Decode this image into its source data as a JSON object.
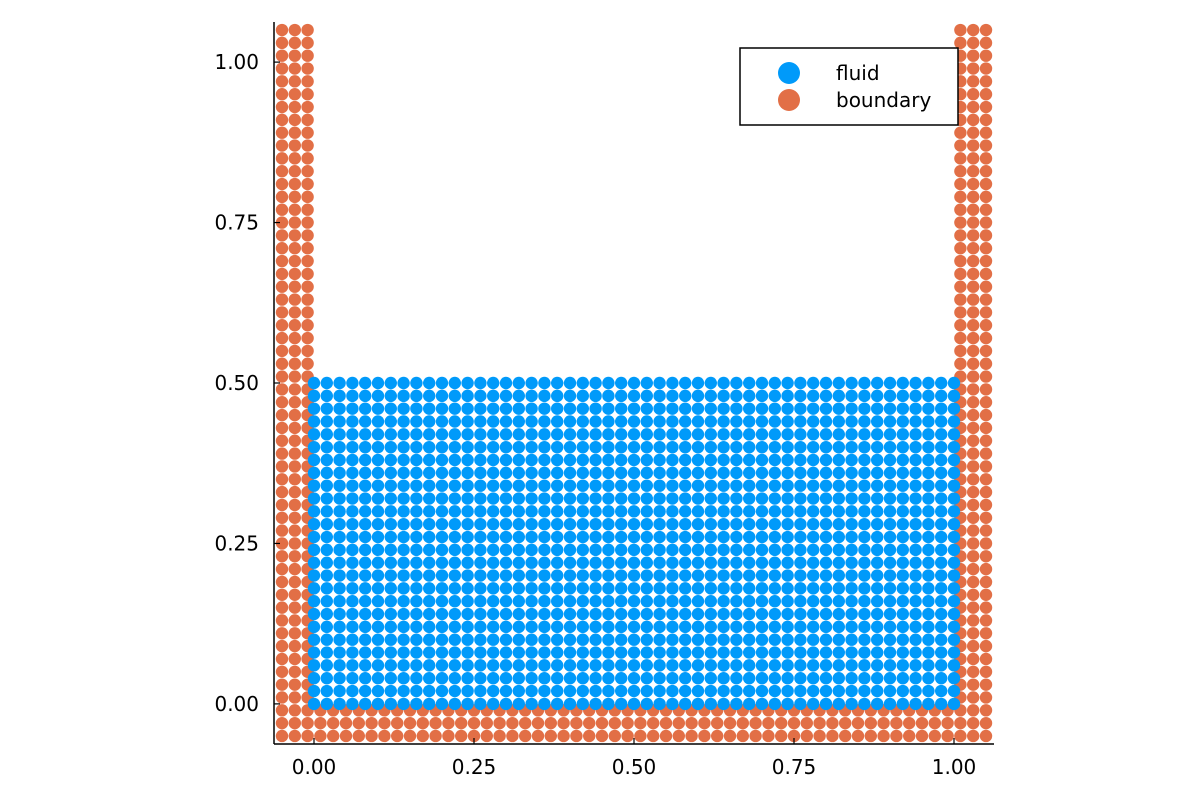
{
  "chart_data": {
    "type": "scatter",
    "title": "",
    "xlabel": "",
    "ylabel": "",
    "xlim": [
      -0.0625,
      1.0625
    ],
    "ylim": [
      -0.0625,
      1.0625
    ],
    "aspect": "equal",
    "grid": false,
    "legend_position": "top-right",
    "x_ticks": [
      {
        "value": 0.0,
        "label": "0.00"
      },
      {
        "value": 0.25,
        "label": "0.25"
      },
      {
        "value": 0.5,
        "label": "0.50"
      },
      {
        "value": 0.75,
        "label": "0.75"
      },
      {
        "value": 1.0,
        "label": "1.00"
      }
    ],
    "y_ticks": [
      {
        "value": 0.0,
        "label": "0.00"
      },
      {
        "value": 0.25,
        "label": "0.25"
      },
      {
        "value": 0.5,
        "label": "0.50"
      },
      {
        "value": 0.75,
        "label": "0.75"
      },
      {
        "value": 1.0,
        "label": "1.00"
      }
    ],
    "series": [
      {
        "name": "fluid",
        "color": "#009AFA",
        "grid": {
          "x_start": 0.0,
          "x_end": 1.0,
          "y_start": 0.0,
          "y_end": 0.5,
          "spacing": 0.02
        }
      },
      {
        "name": "boundary",
        "color": "#E26F46",
        "grid": {
          "x_start": -0.05,
          "x_end": 1.05,
          "y_start": -0.05,
          "y_end": 1.05,
          "spacing": 0.02
        },
        "exclude": {
          "x_min": 0.0,
          "x_max": 1.0,
          "y_min": 0.0,
          "y_max": 1.05
        }
      }
    ]
  }
}
